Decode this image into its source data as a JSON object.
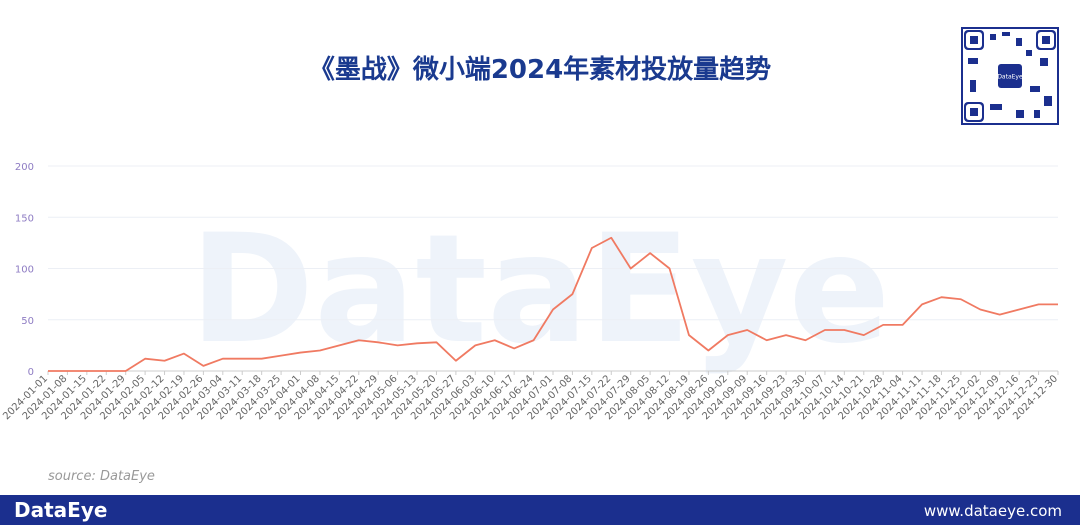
{
  "chart_data": {
    "type": "line",
    "title": "《墨战》微小端2024年素材投放量趋势",
    "categories": [
      "2024-01-01",
      "2024-01-08",
      "2024-01-15",
      "2024-01-22",
      "2024-01-29",
      "2024-02-05",
      "2024-02-12",
      "2024-02-19",
      "2024-02-26",
      "2024-03-04",
      "2024-03-11",
      "2024-03-18",
      "2024-03-25",
      "2024-04-01",
      "2024-04-08",
      "2024-04-15",
      "2024-04-22",
      "2024-04-29",
      "2024-05-06",
      "2024-05-13",
      "2024-05-20",
      "2024-05-27",
      "2024-06-03",
      "2024-06-10",
      "2024-06-17",
      "2024-06-24",
      "2024-07-01",
      "2024-07-08",
      "2024-07-15",
      "2024-07-22",
      "2024-07-29",
      "2024-08-05",
      "2024-08-12",
      "2024-08-19",
      "2024-08-26",
      "2024-09-02",
      "2024-09-09",
      "2024-09-16",
      "2024-09-23",
      "2024-09-30",
      "2024-10-07",
      "2024-10-14",
      "2024-10-21",
      "2024-10-28",
      "2024-11-04",
      "2024-11-11",
      "2024-11-18",
      "2024-11-25",
      "2024-12-02",
      "2024-12-09",
      "2024-12-16",
      "2024-12-23",
      "2024-12-30"
    ],
    "series": [
      {
        "name": "素材投放量",
        "color": "#f07a62",
        "values": [
          0,
          0,
          0,
          0,
          0,
          12,
          10,
          17,
          5,
          12,
          12,
          12,
          15,
          18,
          20,
          25,
          30,
          28,
          25,
          27,
          28,
          10,
          25,
          30,
          22,
          30,
          60,
          75,
          120,
          130,
          100,
          115,
          100,
          35,
          20,
          35,
          40,
          30,
          35,
          30,
          40,
          40,
          35,
          45,
          45,
          65,
          72,
          70,
          60,
          55,
          60,
          65,
          65
        ]
      }
    ],
    "ylim": [
      0,
      200
    ],
    "yticks": [
      0,
      50,
      100,
      150,
      200
    ],
    "grid": true
  },
  "source": "source: DataEye",
  "watermark": "DataEye",
  "qr_label": "DataEye",
  "footer": {
    "brand": "DataEye",
    "url": "www.dataeye.com"
  }
}
